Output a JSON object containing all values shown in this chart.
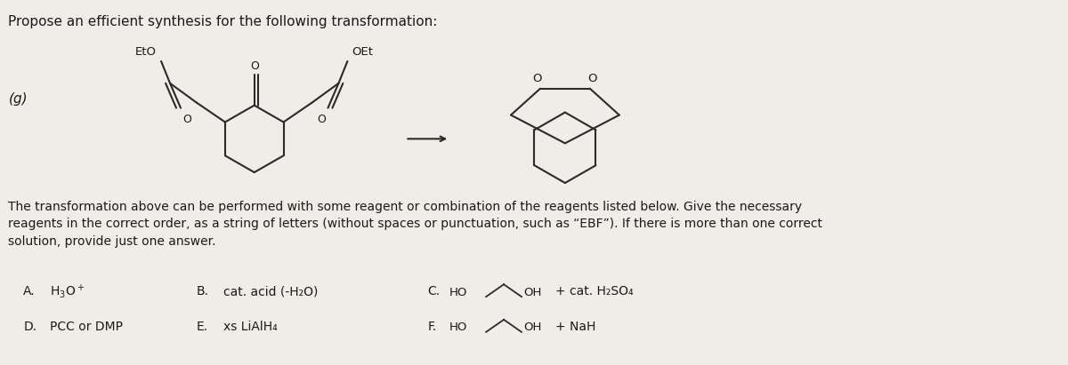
{
  "title": "Propose an efficient synthesis for the following transformation:",
  "problem_label": "(g)",
  "body_text": "The transformation above can be performed with some reagent or combination of the reagents listed below. Give the necessary\nreagents in the correct order, as a string of letters (without spaces or punctuation, such as “EBF”). If there is more than one correct\nsolution, provide just one answer.",
  "reagents": [
    {
      "label": "A.",
      "text": "H₃O⁺"
    },
    {
      "label": "B.",
      "text": "cat. acid (-H₂O)"
    },
    {
      "label": "C.",
      "text": "HO∧∧OH + cat. H₂SO₄"
    },
    {
      "label": "D.",
      "text": "PCC or DMP"
    },
    {
      "label": "E.",
      "text": "xs LiAlH₄"
    },
    {
      "label": "F.",
      "text": "HO∧∧OH + NaH"
    }
  ],
  "background_color": "#f0ede8",
  "text_color": "#1a1a1a",
  "line_color": "#2a2a2a",
  "fontsize_title": 11,
  "fontsize_body": 10,
  "fontsize_reagents": 10
}
